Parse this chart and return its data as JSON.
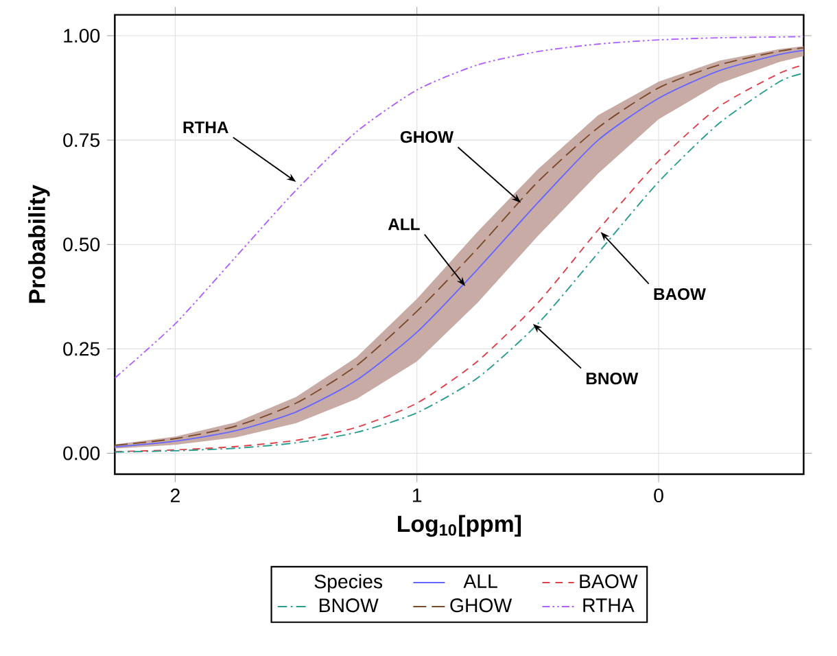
{
  "chart_data": {
    "type": "line",
    "xlabel": "Log$_{10}$[ppm]",
    "ylabel": "Probability",
    "legend_title": "Species",
    "legend": "bottom",
    "grid": true,
    "x": [
      2.25,
      2.0,
      1.75,
      1.5,
      1.25,
      1.0,
      0.75,
      0.5,
      0.25,
      0,
      -0.25,
      -0.5,
      -0.6
    ],
    "xlim": [
      2.25,
      -0.6
    ],
    "xticks": [
      2,
      1,
      0
    ],
    "ylim": [
      -0.05,
      1.05
    ],
    "yticks": [
      {
        "value": 0,
        "label": "0.00"
      },
      {
        "value": 0.25,
        "label": "0.25"
      },
      {
        "value": 0.5,
        "label": "0.50"
      },
      {
        "value": 0.75,
        "label": "0.75"
      },
      {
        "value": 1,
        "label": "1.00"
      }
    ],
    "series": [
      {
        "name": "ALL",
        "color": "#6666ff",
        "line_style": "solid",
        "values": [
          0.015,
          0.029,
          0.054,
          0.099,
          0.175,
          0.29,
          0.44,
          0.6,
          0.75,
          0.85,
          0.916,
          0.955,
          0.965
        ],
        "lower": [
          0.011,
          0.02,
          0.038,
          0.072,
          0.13,
          0.22,
          0.36,
          0.52,
          0.67,
          0.8,
          0.885,
          0.937,
          0.951
        ],
        "upper": [
          0.021,
          0.04,
          0.074,
          0.135,
          0.23,
          0.37,
          0.53,
          0.68,
          0.81,
          0.89,
          0.94,
          0.968,
          0.975
        ]
      },
      {
        "name": "BAOW",
        "color": "#e0404a",
        "line_style": "dashed",
        "values": [
          0.004,
          0.008,
          0.016,
          0.031,
          0.062,
          0.12,
          0.22,
          0.36,
          0.535,
          0.7,
          0.83,
          0.91,
          0.93
        ]
      },
      {
        "name": "BNOW",
        "color": "#2a9d8f",
        "line_style": "dashdot",
        "values": [
          0.003,
          0.006,
          0.012,
          0.025,
          0.05,
          0.097,
          0.18,
          0.31,
          0.48,
          0.65,
          0.79,
          0.89,
          0.91
        ]
      },
      {
        "name": "GHOW",
        "color": "#7a4a2a",
        "line_style": "longdash",
        "values": [
          0.019,
          0.035,
          0.065,
          0.12,
          0.21,
          0.34,
          0.49,
          0.65,
          0.78,
          0.875,
          0.93,
          0.963,
          0.971
        ]
      },
      {
        "name": "RTHA",
        "color": "#b060ff",
        "line_style": "dashdotdot",
        "values": [
          0.18,
          0.31,
          0.47,
          0.63,
          0.77,
          0.87,
          0.93,
          0.962,
          0.98,
          0.99,
          0.995,
          0.997,
          0.998
        ]
      }
    ],
    "annotations": [
      {
        "text": "RTHA",
        "x": 1.5,
        "y": 0.65
      },
      {
        "text": "GHOW",
        "x": 0.57,
        "y": 0.6
      },
      {
        "text": "ALL",
        "x": 0.8,
        "y": 0.4
      },
      {
        "text": "BAOW",
        "x": 0.24,
        "y": 0.53
      },
      {
        "text": "BNOW",
        "x": 0.52,
        "y": 0.31
      }
    ]
  }
}
